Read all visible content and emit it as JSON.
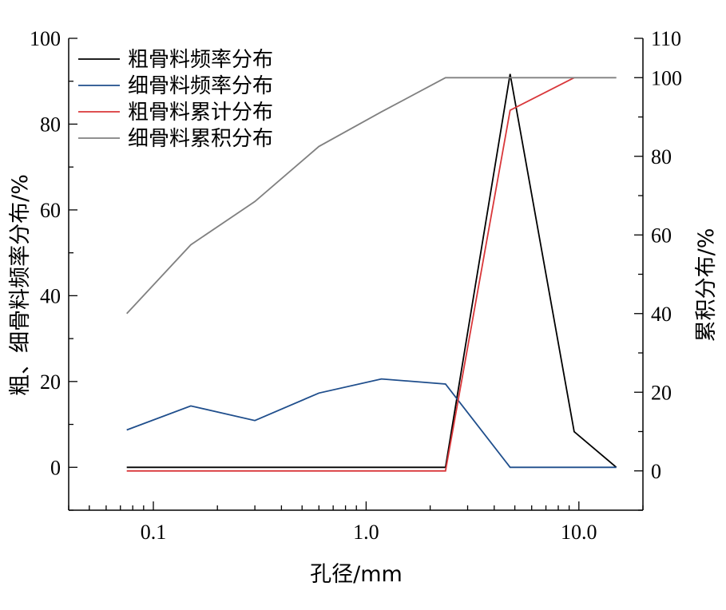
{
  "chart_data": {
    "type": "line",
    "xlabel": "孔径/mm",
    "ylabel_left": "粗、细骨料频率分布/%",
    "ylabel_right": "累积分布/%",
    "xscale": "log",
    "xlim": [
      0.04,
      20
    ],
    "x_ticks": [
      {
        "value": 0.1,
        "label": "0.1"
      },
      {
        "value": 1.0,
        "label": "1.0"
      },
      {
        "value": 10.0,
        "label": "10.0"
      }
    ],
    "ylim_left": [
      -10,
      100
    ],
    "y_ticks_left": [
      0,
      20,
      40,
      60,
      80,
      100
    ],
    "ylim_right": [
      -10,
      110
    ],
    "y_ticks_right": [
      0,
      20,
      40,
      60,
      80,
      100,
      110
    ],
    "grid": false,
    "legend_position": "top-left",
    "series": [
      {
        "name": "粗骨料频率分布",
        "axis": "left",
        "color": "#000000",
        "x": [
          0.075,
          0.15,
          0.3,
          0.6,
          1.18,
          2.36,
          4.75,
          9.5,
          15
        ],
        "y": [
          0,
          0,
          0,
          0,
          0,
          0,
          91.7,
          8.3,
          0
        ]
      },
      {
        "name": "细骨料频率分布",
        "axis": "left",
        "color": "#1f4e8c",
        "x": [
          0.075,
          0.15,
          0.3,
          0.6,
          1.18,
          2.36,
          4.75,
          9.5,
          15
        ],
        "y": [
          8.7,
          14.3,
          10.9,
          17.3,
          20.6,
          19.4,
          0,
          0,
          0
        ]
      },
      {
        "name": "粗骨料累计分布",
        "axis": "right",
        "color": "#d9373a",
        "x": [
          0.075,
          0.15,
          0.3,
          0.6,
          1.18,
          2.36,
          4.75,
          9.5
        ],
        "y": [
          0,
          0,
          0,
          0,
          0,
          0,
          91.7,
          100
        ]
      },
      {
        "name": "细骨料累积分布",
        "axis": "right",
        "color": "#808080",
        "x": [
          0.075,
          0.15,
          0.3,
          0.6,
          1.18,
          2.36,
          4.75,
          9.5,
          15
        ],
        "y": [
          40,
          57.5,
          68.5,
          82.5,
          91.3,
          100,
          100,
          100,
          100
        ]
      }
    ]
  }
}
